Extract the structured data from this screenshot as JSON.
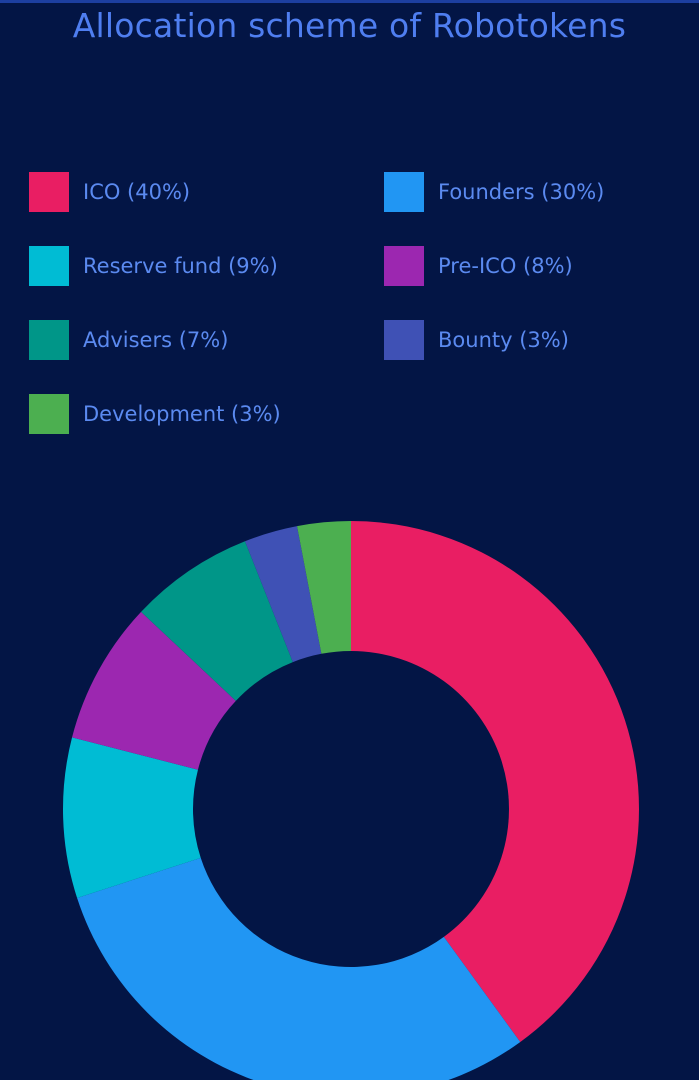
{
  "chart_data": {
    "type": "pie",
    "title": "Allocation scheme of Robotokens",
    "categories": [
      "ICO",
      "Founders",
      "Reserve fund",
      "Pre-ICO",
      "Advisers",
      "Bounty",
      "Development"
    ],
    "values": [
      40,
      30,
      9,
      8,
      7,
      3,
      3
    ],
    "colors": [
      "#e91e63",
      "#2196f3",
      "#00bcd4",
      "#9c27b0",
      "#009688",
      "#3f51b5",
      "#4caf50"
    ],
    "legend": {
      "placement": "top",
      "labels": [
        "ICO (40%)",
        "Founders (30%)",
        "Reserve fund (9%)",
        "Pre-ICO (8%)",
        "Advisers (7%)",
        "Bounty (3%)",
        "Development (3%)"
      ]
    },
    "donut": true
  }
}
